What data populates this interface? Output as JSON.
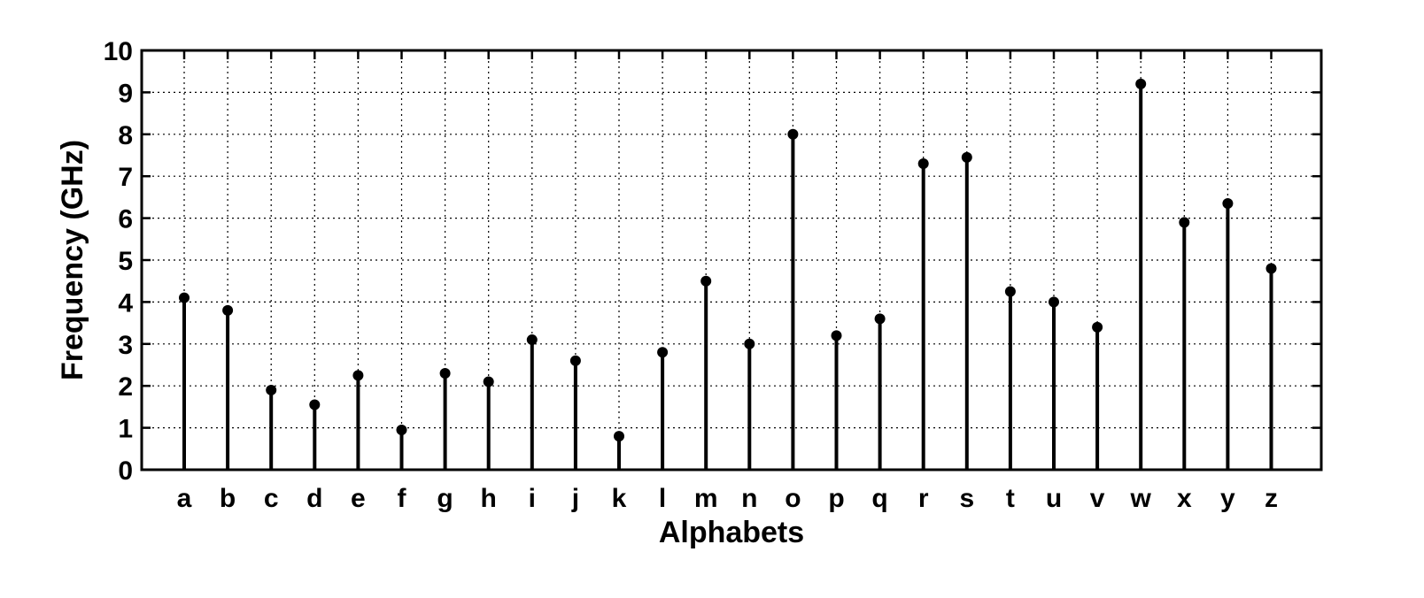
{
  "chart_data": {
    "type": "stem",
    "title": "",
    "xlabel": "Alphabets",
    "ylabel": "Frequency (GHz)",
    "ylim": [
      0,
      10
    ],
    "yticks": [
      0,
      1,
      2,
      3,
      4,
      5,
      6,
      7,
      8,
      9,
      10
    ],
    "grid": true,
    "categories": [
      "a",
      "b",
      "c",
      "d",
      "e",
      "f",
      "g",
      "h",
      "i",
      "j",
      "k",
      "l",
      "m",
      "n",
      "o",
      "p",
      "q",
      "r",
      "s",
      "t",
      "u",
      "v",
      "w",
      "x",
      "y",
      "z"
    ],
    "values": [
      4.1,
      3.8,
      1.9,
      1.55,
      2.25,
      0.95,
      2.3,
      2.1,
      3.1,
      2.6,
      0.8,
      2.8,
      4.5,
      3.0,
      8.0,
      3.2,
      3.6,
      7.3,
      7.45,
      4.25,
      4.0,
      3.4,
      9.2,
      5.9,
      6.35,
      4.8
    ],
    "colors": {
      "stem": "#000000",
      "grid": "#000000",
      "background": "#ffffff"
    }
  }
}
